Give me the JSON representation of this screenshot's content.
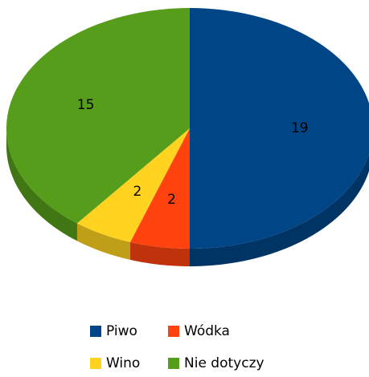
{
  "chart_data": {
    "type": "pie3d",
    "categories": [
      "Piwo",
      "Wódka",
      "Wino",
      "Nie dotyczy"
    ],
    "values": [
      19,
      2,
      2,
      15
    ],
    "colors": [
      "#004586",
      "#ff420e",
      "#ffd320",
      "#579d1c"
    ],
    "legend": "bottom"
  }
}
